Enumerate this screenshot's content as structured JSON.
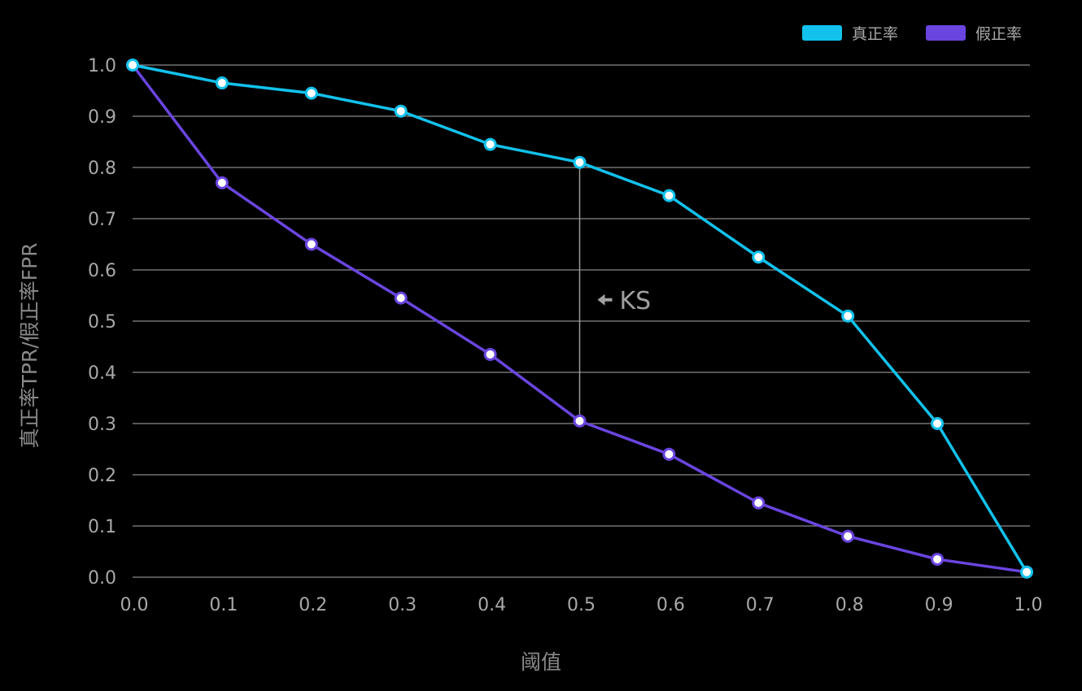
{
  "chart_data": {
    "type": "line",
    "xlabel": "阈值",
    "ylabel": "真正率TPR/假正率FPR",
    "x": [
      0.0,
      0.1,
      0.2,
      0.3,
      0.4,
      0.5,
      0.6,
      0.7,
      0.8,
      0.9,
      1.0
    ],
    "xlim": [
      0.0,
      1.0
    ],
    "ylim": [
      0.0,
      1.0
    ],
    "x_ticks": [
      "0.0",
      "0.1",
      "0.2",
      "0.3",
      "0.4",
      "0.5",
      "0.6",
      "0.7",
      "0.8",
      "0.9",
      "1.0"
    ],
    "y_ticks": [
      "0.0",
      "0.1",
      "0.2",
      "0.3",
      "0.4",
      "0.5",
      "0.6",
      "0.7",
      "0.8",
      "0.9",
      "1.0"
    ],
    "grid": "horizontal",
    "legend_position": "top-right",
    "series": [
      {
        "name": "真正率",
        "color": "#12c2ec",
        "values": [
          1.0,
          0.965,
          0.945,
          0.91,
          0.845,
          0.81,
          0.745,
          0.625,
          0.51,
          0.3,
          0.01
        ]
      },
      {
        "name": "假正率",
        "color": "#6a45e0",
        "values": [
          1.0,
          0.77,
          0.65,
          0.545,
          0.435,
          0.305,
          0.24,
          0.145,
          0.08,
          0.035,
          0.01
        ]
      }
    ],
    "annotation": {
      "label": "KS",
      "x": 0.5,
      "y_from": 0.305,
      "y_to": 0.81,
      "line_color": "#9a9a9a"
    }
  }
}
